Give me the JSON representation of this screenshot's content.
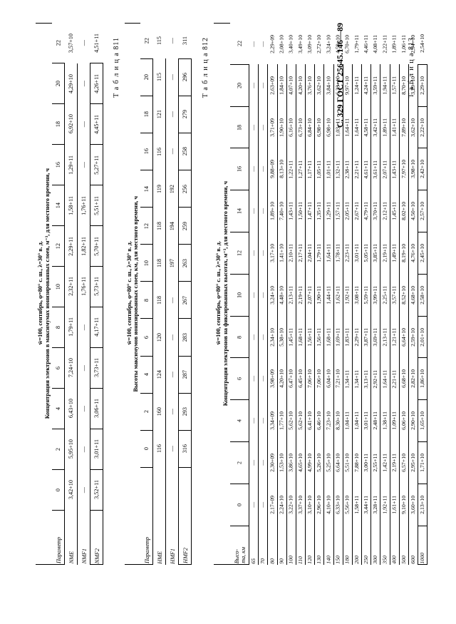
{
  "page_header": "С. 329   ГОСТ 25645.146—89",
  "tables": [
    {
      "label": "Т а б л и ц а  811",
      "caption_parts": [
        "Концентрация электронов в максимумах ионизированных слоев, м⁻³, для местного времени, ч",
        "w̄=100, сентябрь, φ=80° с. ш., λ=30° в. д."
      ],
      "param_header": "Параметр",
      "cols": [
        "0",
        "2",
        "4",
        "6",
        "8",
        "10",
        "12",
        "14",
        "16",
        "18",
        "20",
        "22"
      ],
      "rows": [
        {
          "p": "NME",
          "v": [
            "3,42+10",
            "5,95+10",
            "6,43+10",
            "7,24+10",
            "1,79+11",
            "2,32+11",
            "2,29+11",
            "1,58+11",
            "1,29+11",
            "6,92+10",
            "4,29+10",
            "3,57+10"
          ]
        },
        {
          "p": "NMF1",
          "v": [
            "—",
            "—",
            "—",
            "—",
            "—",
            "1,76+11",
            "1,82+11",
            "1,76+11",
            "—",
            "—",
            "—",
            "—"
          ]
        },
        {
          "p": "NMF2",
          "v": [
            "3,52+11",
            "3,01+11",
            "3,06+11",
            "3,73+11",
            "4,17+11",
            "5,73+11",
            "5,70+11",
            "5,51+11",
            "5,27+11",
            "4,45+11",
            "4,26+11",
            "4,51+11"
          ]
        }
      ]
    },
    {
      "label": "Т а б л и ц а  812",
      "caption_parts": [
        "Высоты максимумов ионизированных слоев, км, для местного времени, ч",
        "w̄=100, сентябрь, φ=80° с. ш., λ=30° в. д."
      ],
      "param_header": "Параметр",
      "cols": [
        "0",
        "2",
        "4",
        "6",
        "8",
        "10",
        "12",
        "14",
        "16",
        "18",
        "20",
        "22"
      ],
      "rows": [
        {
          "p": "HME",
          "v": [
            "116",
            "160",
            "124",
            "120",
            "118",
            "118",
            "118",
            "119",
            "116",
            "121",
            "115",
            "115"
          ]
        },
        {
          "p": "HMF1",
          "v": [
            "—",
            "—",
            "—",
            "—",
            "—",
            "197",
            "194",
            "192",
            "—",
            "—",
            "—",
            "—"
          ]
        },
        {
          "p": "HMF2",
          "v": [
            "316",
            "293",
            "287",
            "283",
            "267",
            "263",
            "259",
            "256",
            "258",
            "279",
            "296",
            "311"
          ]
        }
      ]
    },
    {
      "label": "Т а б л и ц а  813",
      "caption_parts": [
        "Концентрация электронов на фиксированных высотах, м⁻³, для местного времени, ч",
        "w̄=100, сентябрь, φ=80° с. ш., λ=30° в. д."
      ],
      "param_header": "Высо-\nта, км",
      "cols": [
        "0",
        "2",
        "4",
        "6",
        "8",
        "10",
        "12",
        "14",
        "16",
        "18",
        "20",
        "22"
      ],
      "rows": [
        {
          "p": "65",
          "v": [
            "—",
            "—",
            "—",
            "—",
            "—",
            "—",
            "—",
            "—",
            "—",
            "—",
            "—",
            "—"
          ]
        },
        {
          "p": "70",
          "v": [
            "—",
            "—",
            "—",
            "—",
            "—",
            "—",
            "—",
            "—",
            "—",
            "—",
            "—",
            "—"
          ]
        },
        {
          "p": "80",
          "v": [
            "2,17+09",
            "2,30+09",
            "3,34+09",
            "3,98+09",
            "2,34+10",
            "3,24+10",
            "3,17+10",
            "1,89+10",
            "9,88+09",
            "3,71+09",
            "2,63+09",
            "2,29+09"
          ]
        },
        {
          "p": "90",
          "v": [
            "2,24+10",
            "1,53+10",
            "1,77+10",
            "4,20+10",
            "5,38+10",
            "4,48+10",
            "1,41+10",
            "7,40+10",
            "8,13+10",
            "1,90+10",
            "1,84+10",
            "2,08+10"
          ]
        },
        {
          "p": "100",
          "v": [
            "3,22+10",
            "3,86+10",
            "5,62+10",
            "6,47+10",
            "1,45+11",
            "2,13+11",
            "2,10+11",
            "1,43+11",
            "1,22+11",
            "6,16+10",
            "4,07+10",
            "3,40+10"
          ]
        },
        {
          "p": "110",
          "v": [
            "3,37+10",
            "4,65+10",
            "5,62+10",
            "6,45+10",
            "1,68+11",
            "2,19+11",
            "2,17+11",
            "1,50+11",
            "1,27+11",
            "6,73+10",
            "4,20+10",
            "3,49+10"
          ]
        },
        {
          "p": "120",
          "v": [
            "3,10+10",
            "4,99+10",
            "6,41+10",
            "7,06+10",
            "1,56+11",
            "2,07+11",
            "2,04+11",
            "1,47+11",
            "1,17+11",
            "6,84+10",
            "3,76+10",
            "3,09+10"
          ]
        },
        {
          "p": "130",
          "v": [
            "2,96+10",
            "5,26+10",
            "6,46+10",
            "7,06+10",
            "1,56+11",
            "1,90+11",
            "1,79+11",
            "1,35+11",
            "1,05+11",
            "6,98+10",
            "3,62+10",
            "2,72+10"
          ]
        },
        {
          "p": "140",
          "v": [
            "4,10+10",
            "5,25+10",
            "7,23+10",
            "6,04+10",
            "1,68+11",
            "1,44+11",
            "1,64+11",
            "1,29+11",
            "1,01+11",
            "6,98+10",
            "3,84+10",
            "3,24+10"
          ]
        },
        {
          "p": "150",
          "v": [
            "6,33+10",
            "6,64+10",
            "8,30+10",
            "7,21+10",
            "1,69+11",
            "1,62+11",
            "1,78+11",
            "1,57+11",
            "1,32+11",
            "1,03+11",
            "6,33+10",
            "4,59+10"
          ]
        },
        {
          "p": "180",
          "v": [
            "5,56+10",
            "5,51+10",
            "1,04+11",
            "1,34+11",
            "1,83+11",
            "1,92+11",
            "2,23+11",
            "2,05+11",
            "2,38+11",
            "1,64+11",
            "9,97+10",
            "6,70+10"
          ]
        },
        {
          "p": "200",
          "v": [
            "1,58+11",
            "7,88+10",
            "1,04+11",
            "1,34+11",
            "2,29+11",
            "3,08+11",
            "3,01+11",
            "2,67+11",
            "2,21+11",
            "1,64+11",
            "1,24+11",
            "1,79+11"
          ]
        },
        {
          "p": "250",
          "v": [
            "3,44+11",
            "3,00+11",
            "3,01+11",
            "3,13+11",
            "3,87+11",
            "5,59+11",
            "5,05+11",
            "4,79+11",
            "4,61+11",
            "4,58+11",
            "4,24+11",
            "4,46+11"
          ]
        },
        {
          "p": "300",
          "v": [
            "3,28+11",
            "2,55+11",
            "2,48+11",
            "2,92+11",
            "3,69+11",
            "3,99+11",
            "3,85+11",
            "3,70+11",
            "3,61+11",
            "3,42+11",
            "3,59+11",
            "4,08+11"
          ]
        },
        {
          "p": "350",
          "v": [
            "1,92+11",
            "1,42+11",
            "1,38+11",
            "1,64+11",
            "2,13+11",
            "2,25+11",
            "2,19+11",
            "2,12+11",
            "2,07+11",
            "1,89+11",
            "1,94+11",
            "2,22+11"
          ]
        },
        {
          "p": "400",
          "v": [
            "1,61+11",
            "2,19+11",
            "1,09+11",
            "2,21+11",
            "1,21+11",
            "3,57+11",
            "1,49+11",
            "1,45+11",
            "1,43+11",
            "1,41+11",
            "1,57+11",
            "1,89+11"
          ]
        },
        {
          "p": "500",
          "v": [
            "9,10+10",
            "6,57+10",
            "6,06+10",
            "6,68+10",
            "6,64+10",
            "8,52+10",
            "8,19+10",
            "8,02+10",
            "7,97+10",
            "7,89+10",
            "8,70+10",
            "1,06+11"
          ]
        },
        {
          "p": "600",
          "v": [
            "3,60+10",
            "2,95+10",
            "2,90+10",
            "2,82+10",
            "2,59+10",
            "4,68+10",
            "4,76+10",
            "4,50+10",
            "3,98+10",
            "3,62+10",
            "3,29+10",
            "2,94+10"
          ]
        },
        {
          "p": "1000",
          "v": [
            "2,13+10",
            "1,71+10",
            "1,65+10",
            "1,86+10",
            "2,01+10",
            "2,58+10",
            "2,45+10",
            "2,57+10",
            "2,42+10",
            "2,22+10",
            "2,29+10",
            "2,54+10"
          ]
        }
      ]
    }
  ]
}
